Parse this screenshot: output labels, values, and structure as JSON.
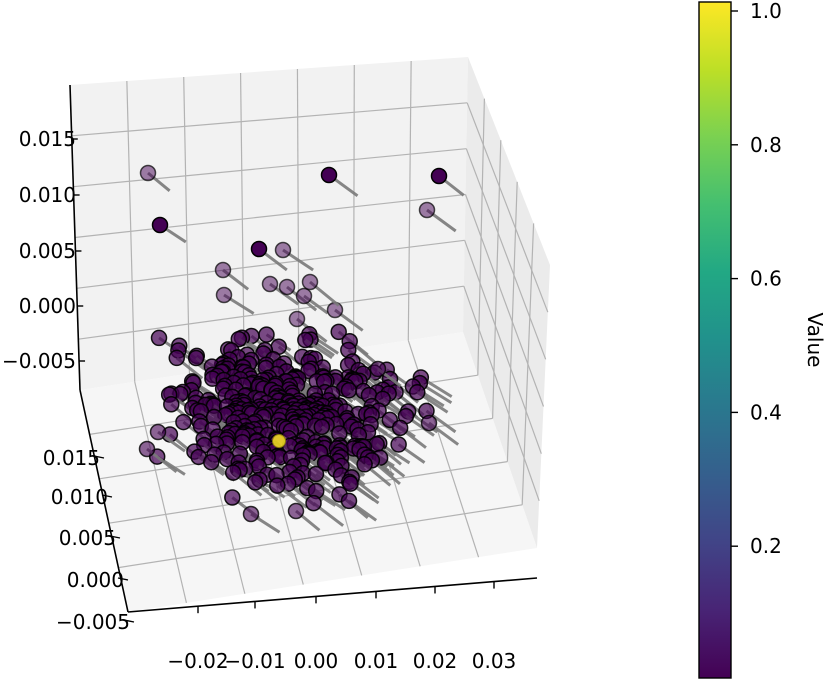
{
  "chart_data": {
    "type": "scatter",
    "projection": "3d",
    "title": "",
    "xlabel": "",
    "ylabel": "",
    "zlabel": "",
    "x_ticks": [
      "−0.02",
      "−0.01",
      "0.00",
      "0.01",
      "0.02",
      "0.03"
    ],
    "y_ticks": [
      "0.015",
      "0.010",
      "0.005",
      "0.000",
      "−0.005"
    ],
    "z_ticks": [
      "0.015",
      "0.010",
      "0.005",
      "0.000",
      "−0.005"
    ],
    "colormap": "viridis",
    "colorbar": {
      "label": "Value",
      "ticks": [
        "0.2",
        "0.4",
        "0.6",
        "0.8",
        "1.0"
      ],
      "tick_values": [
        0.2,
        0.4,
        0.6,
        0.8,
        1.0
      ],
      "range": [
        0.0,
        1.0
      ]
    },
    "highlight_point": {
      "value": 1.0,
      "color": "#fde725"
    },
    "background_point_value": 0.0,
    "point_color": "#440154",
    "stem_color": "#7a7a7a",
    "grid": true
  }
}
